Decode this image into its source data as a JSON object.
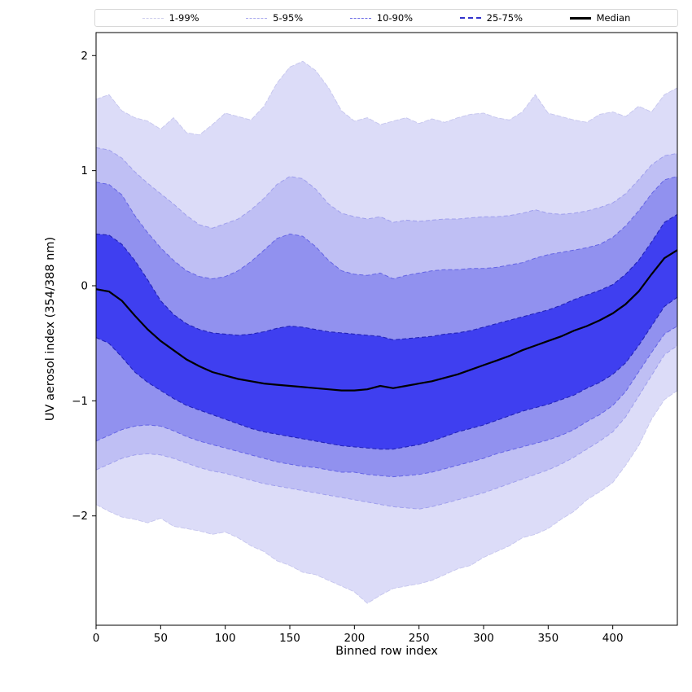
{
  "chart_data": {
    "type": "area",
    "title": "",
    "xlabel": "Binned row index",
    "ylabel": "UV aerosol index (354/388 nm)",
    "xlim": [
      0,
      450
    ],
    "ylim": [
      -2.95,
      2.2
    ],
    "x_ticks": [
      0,
      50,
      100,
      150,
      200,
      250,
      300,
      350,
      400
    ],
    "y_ticks": [
      -2,
      -1,
      0,
      1,
      2
    ],
    "grid": false,
    "legend_position": "top",
    "legend": [
      {
        "label": "1-99%",
        "color": "#cdcdec",
        "style": "dashed",
        "width": 1
      },
      {
        "label": "5-95%",
        "color": "#a9a9ee",
        "style": "dashed",
        "width": 1
      },
      {
        "label": "10-90%",
        "color": "#6b6be6",
        "style": "dashed",
        "width": 1
      },
      {
        "label": "25-75%",
        "color": "#3333cc",
        "style": "dashed",
        "width": 2
      },
      {
        "label": "Median",
        "color": "#000000",
        "style": "solid",
        "width": 3
      }
    ],
    "x": [
      0,
      10,
      20,
      30,
      40,
      50,
      60,
      70,
      80,
      90,
      100,
      110,
      120,
      130,
      140,
      150,
      160,
      170,
      180,
      190,
      200,
      210,
      220,
      230,
      240,
      250,
      260,
      270,
      280,
      290,
      300,
      310,
      320,
      330,
      340,
      350,
      360,
      370,
      380,
      390,
      400,
      410,
      420,
      430,
      440,
      450
    ],
    "bands": [
      {
        "label": "1-99%",
        "fill": "#dcdcf8",
        "edge": "#c6c6ee",
        "edge_width": 0.9,
        "edge_dash": "6 2",
        "high": [
          1.62,
          1.66,
          1.52,
          1.46,
          1.43,
          1.36,
          1.46,
          1.33,
          1.31,
          1.4,
          1.5,
          1.47,
          1.44,
          1.56,
          1.76,
          1.9,
          1.95,
          1.87,
          1.72,
          1.52,
          1.43,
          1.46,
          1.4,
          1.43,
          1.46,
          1.41,
          1.45,
          1.42,
          1.46,
          1.49,
          1.5,
          1.46,
          1.44,
          1.51,
          1.66,
          1.5,
          1.47,
          1.44,
          1.42,
          1.49,
          1.51,
          1.47,
          1.56,
          1.51,
          1.66,
          1.72
        ],
        "low": [
          -1.9,
          -1.96,
          -2.01,
          -2.03,
          -2.06,
          -2.02,
          -2.09,
          -2.11,
          -2.13,
          -2.16,
          -2.14,
          -2.19,
          -2.26,
          -2.31,
          -2.39,
          -2.43,
          -2.49,
          -2.51,
          -2.56,
          -2.61,
          -2.66,
          -2.76,
          -2.69,
          -2.63,
          -2.61,
          -2.59,
          -2.56,
          -2.51,
          -2.46,
          -2.43,
          -2.36,
          -2.31,
          -2.26,
          -2.19,
          -2.16,
          -2.11,
          -2.03,
          -1.96,
          -1.86,
          -1.79,
          -1.71,
          -1.56,
          -1.39,
          -1.16,
          -0.99,
          -0.91
        ]
      },
      {
        "label": "5-95%",
        "fill": "#bfbff4",
        "edge": "#9f9fec",
        "edge_width": 1,
        "edge_dash": "5 3",
        "high": [
          1.2,
          1.18,
          1.11,
          0.99,
          0.89,
          0.8,
          0.71,
          0.61,
          0.53,
          0.5,
          0.54,
          0.58,
          0.66,
          0.76,
          0.88,
          0.95,
          0.93,
          0.84,
          0.71,
          0.63,
          0.6,
          0.58,
          0.6,
          0.55,
          0.57,
          0.56,
          0.57,
          0.58,
          0.58,
          0.59,
          0.6,
          0.6,
          0.61,
          0.63,
          0.66,
          0.63,
          0.62,
          0.63,
          0.65,
          0.68,
          0.72,
          0.8,
          0.92,
          1.05,
          1.13,
          1.15
        ],
        "low": [
          -1.6,
          -1.55,
          -1.5,
          -1.47,
          -1.46,
          -1.47,
          -1.5,
          -1.54,
          -1.58,
          -1.61,
          -1.63,
          -1.66,
          -1.69,
          -1.72,
          -1.74,
          -1.76,
          -1.78,
          -1.8,
          -1.82,
          -1.84,
          -1.86,
          -1.88,
          -1.9,
          -1.92,
          -1.93,
          -1.94,
          -1.92,
          -1.89,
          -1.86,
          -1.83,
          -1.8,
          -1.76,
          -1.72,
          -1.68,
          -1.64,
          -1.6,
          -1.55,
          -1.49,
          -1.42,
          -1.35,
          -1.27,
          -1.14,
          -0.96,
          -0.78,
          -0.6,
          -0.52
        ]
      },
      {
        "label": "10-90%",
        "fill": "#9191ef",
        "edge": "#6464e4",
        "edge_width": 1,
        "edge_dash": "5 3",
        "high": [
          0.9,
          0.88,
          0.79,
          0.61,
          0.46,
          0.33,
          0.22,
          0.13,
          0.08,
          0.06,
          0.08,
          0.13,
          0.21,
          0.31,
          0.41,
          0.45,
          0.43,
          0.34,
          0.22,
          0.13,
          0.1,
          0.09,
          0.11,
          0.06,
          0.09,
          0.11,
          0.13,
          0.14,
          0.14,
          0.15,
          0.15,
          0.16,
          0.18,
          0.2,
          0.24,
          0.27,
          0.29,
          0.31,
          0.33,
          0.36,
          0.42,
          0.52,
          0.65,
          0.8,
          0.92,
          0.95
        ],
        "low": [
          -1.35,
          -1.3,
          -1.25,
          -1.22,
          -1.21,
          -1.22,
          -1.26,
          -1.31,
          -1.35,
          -1.38,
          -1.41,
          -1.44,
          -1.47,
          -1.5,
          -1.53,
          -1.55,
          -1.57,
          -1.58,
          -1.6,
          -1.62,
          -1.62,
          -1.64,
          -1.65,
          -1.66,
          -1.65,
          -1.64,
          -1.62,
          -1.59,
          -1.56,
          -1.53,
          -1.5,
          -1.46,
          -1.43,
          -1.4,
          -1.37,
          -1.34,
          -1.3,
          -1.25,
          -1.18,
          -1.12,
          -1.04,
          -0.92,
          -0.75,
          -0.58,
          -0.42,
          -0.35
        ]
      },
      {
        "label": "25-75%",
        "fill": "#3f3ff0",
        "edge": "#2323b8",
        "edge_width": 1.1,
        "edge_dash": "5 3",
        "high": [
          0.45,
          0.44,
          0.36,
          0.22,
          0.05,
          -0.13,
          -0.25,
          -0.33,
          -0.38,
          -0.41,
          -0.42,
          -0.43,
          -0.42,
          -0.4,
          -0.37,
          -0.35,
          -0.36,
          -0.38,
          -0.4,
          -0.41,
          -0.42,
          -0.43,
          -0.44,
          -0.47,
          -0.46,
          -0.45,
          -0.44,
          -0.42,
          -0.41,
          -0.39,
          -0.36,
          -0.33,
          -0.3,
          -0.27,
          -0.24,
          -0.21,
          -0.17,
          -0.12,
          -0.08,
          -0.04,
          0.01,
          0.1,
          0.22,
          0.38,
          0.55,
          0.62
        ],
        "low": [
          -0.45,
          -0.5,
          -0.62,
          -0.75,
          -0.84,
          -0.91,
          -0.98,
          -1.04,
          -1.08,
          -1.12,
          -1.16,
          -1.2,
          -1.24,
          -1.27,
          -1.29,
          -1.31,
          -1.33,
          -1.35,
          -1.37,
          -1.39,
          -1.4,
          -1.41,
          -1.42,
          -1.42,
          -1.4,
          -1.38,
          -1.35,
          -1.31,
          -1.27,
          -1.24,
          -1.21,
          -1.17,
          -1.13,
          -1.09,
          -1.06,
          -1.03,
          -0.99,
          -0.95,
          -0.89,
          -0.84,
          -0.77,
          -0.67,
          -0.52,
          -0.35,
          -0.18,
          -0.1
        ]
      }
    ],
    "median": {
      "label": "Median",
      "color": "#000000",
      "width": 2.2,
      "values": [
        -0.03,
        -0.05,
        -0.13,
        -0.26,
        -0.38,
        -0.48,
        -0.56,
        -0.64,
        -0.7,
        -0.75,
        -0.78,
        -0.81,
        -0.83,
        -0.85,
        -0.86,
        -0.87,
        -0.88,
        -0.89,
        -0.9,
        -0.91,
        -0.91,
        -0.9,
        -0.87,
        -0.89,
        -0.87,
        -0.85,
        -0.83,
        -0.8,
        -0.77,
        -0.73,
        -0.69,
        -0.65,
        -0.61,
        -0.56,
        -0.52,
        -0.48,
        -0.44,
        -0.39,
        -0.35,
        -0.3,
        -0.24,
        -0.16,
        -0.05,
        0.1,
        0.24,
        0.31
      ]
    }
  }
}
